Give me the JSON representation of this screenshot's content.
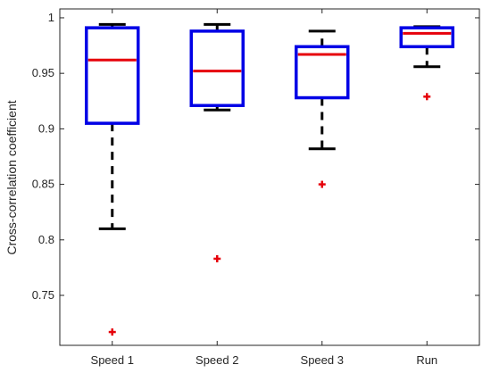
{
  "chart_data": {
    "type": "boxplot",
    "title": "",
    "xlabel": "",
    "ylabel": "Cross-correlation coefficient",
    "ylim": [
      0.705,
      1.008
    ],
    "yticks": [
      0.75,
      0.8,
      0.85,
      0.9,
      0.95,
      1
    ],
    "ytick_labels": [
      "0.75",
      "0.8",
      "0.85",
      "0.9",
      "0.95",
      "1"
    ],
    "categories": [
      "Speed 1",
      "Speed 2",
      "Speed 3",
      "Run"
    ],
    "boxes": [
      {
        "whisker_low": 0.81,
        "q1": 0.905,
        "median": 0.962,
        "q3": 0.991,
        "whisker_high": 0.994,
        "outliers": [
          0.717
        ]
      },
      {
        "whisker_low": 0.917,
        "q1": 0.921,
        "median": 0.952,
        "q3": 0.988,
        "whisker_high": 0.994,
        "outliers": [
          0.783
        ]
      },
      {
        "whisker_low": 0.882,
        "q1": 0.928,
        "median": 0.967,
        "q3": 0.974,
        "whisker_high": 0.988,
        "outliers": [
          0.85
        ]
      },
      {
        "whisker_low": 0.956,
        "q1": 0.974,
        "median": 0.986,
        "q3": 0.991,
        "whisker_high": 0.992,
        "outliers": [
          0.929
        ]
      }
    ],
    "grid": false,
    "colors": {
      "box": "#0000e6",
      "median": "#e6000a",
      "whisker": "#000000",
      "outlier": "#e6000a"
    }
  }
}
